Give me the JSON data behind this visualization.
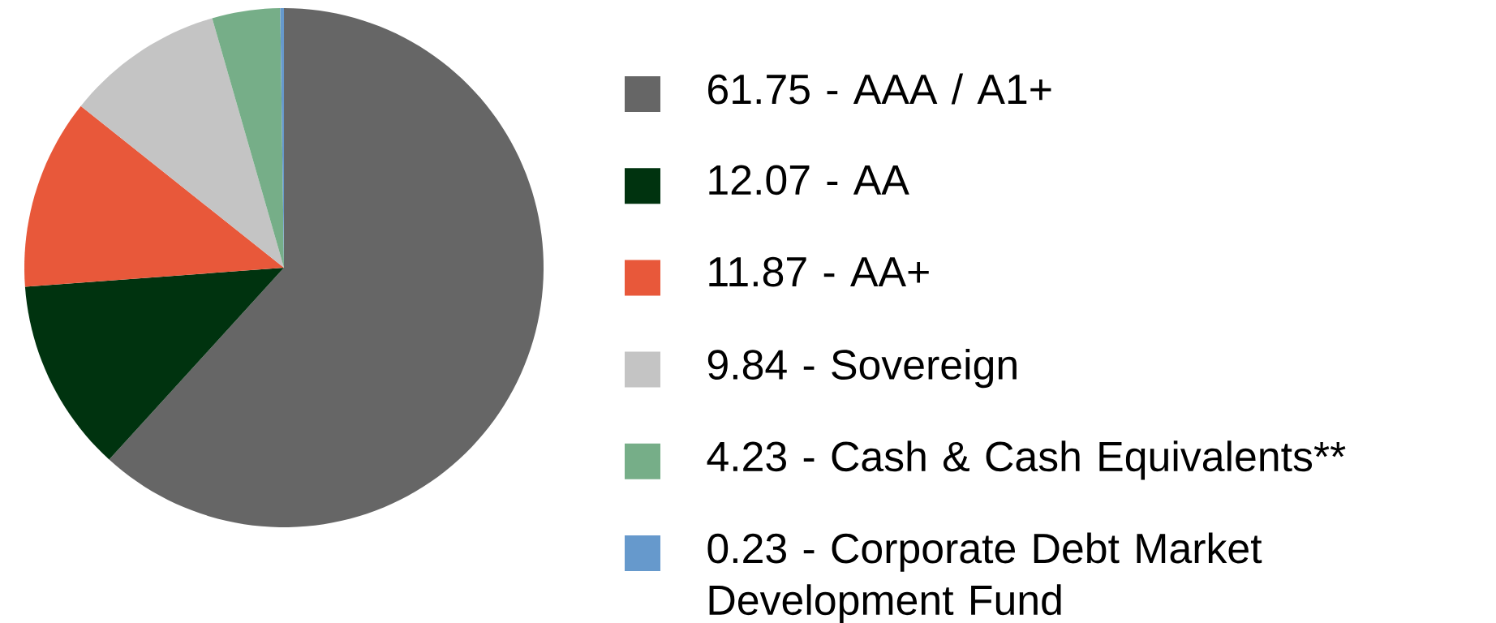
{
  "chart_data": {
    "type": "pie",
    "categories": [
      "61.75 - AAA / A1+",
      "12.07 - AA",
      "11.87 - AA+",
      "9.84 - Sovereign",
      "4.23 - Cash & Cash Equivalents**",
      "0.23 - Corporate Debt Market Development Fund"
    ],
    "values": [
      61.75,
      12.07,
      11.87,
      9.84,
      4.23,
      0.23
    ],
    "colors": [
      "#666666",
      "#00330f",
      "#e8583a",
      "#c4c4c4",
      "#76ae88",
      "#6699cc"
    ],
    "legend": "right"
  }
}
